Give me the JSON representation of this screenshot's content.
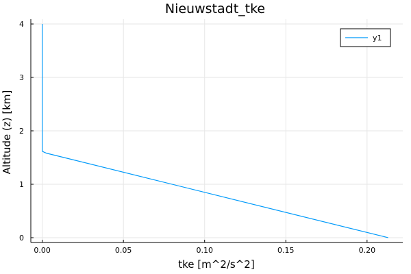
{
  "chart_data": {
    "type": "line",
    "title": "Nieuwstadt_tke",
    "xlabel": "tke [m^2/s^2]",
    "ylabel": "Altitude (z) [km]",
    "xlim": [
      -0.007,
      0.222
    ],
    "ylim": [
      -0.09,
      4.09
    ],
    "xticks": [
      0.0,
      0.05,
      0.1,
      0.15,
      0.2
    ],
    "xtick_labels": [
      "0.00",
      "0.05",
      "0.10",
      "0.15",
      "0.20"
    ],
    "yticks": [
      0,
      1,
      2,
      3,
      4
    ],
    "ytick_labels": [
      "0",
      "1",
      "2",
      "3",
      "4"
    ],
    "grid": true,
    "legend": {
      "position": "top-right",
      "entries": [
        "y1"
      ]
    },
    "series": [
      {
        "name": "y1",
        "color": "#009AFA",
        "x": [
          0.0,
          0.0,
          0.0,
          0.0,
          0.0012,
          0.0028,
          0.213
        ],
        "y": [
          4.0,
          3.0,
          2.0,
          1.62,
          1.6,
          1.58,
          0.0
        ]
      }
    ]
  }
}
